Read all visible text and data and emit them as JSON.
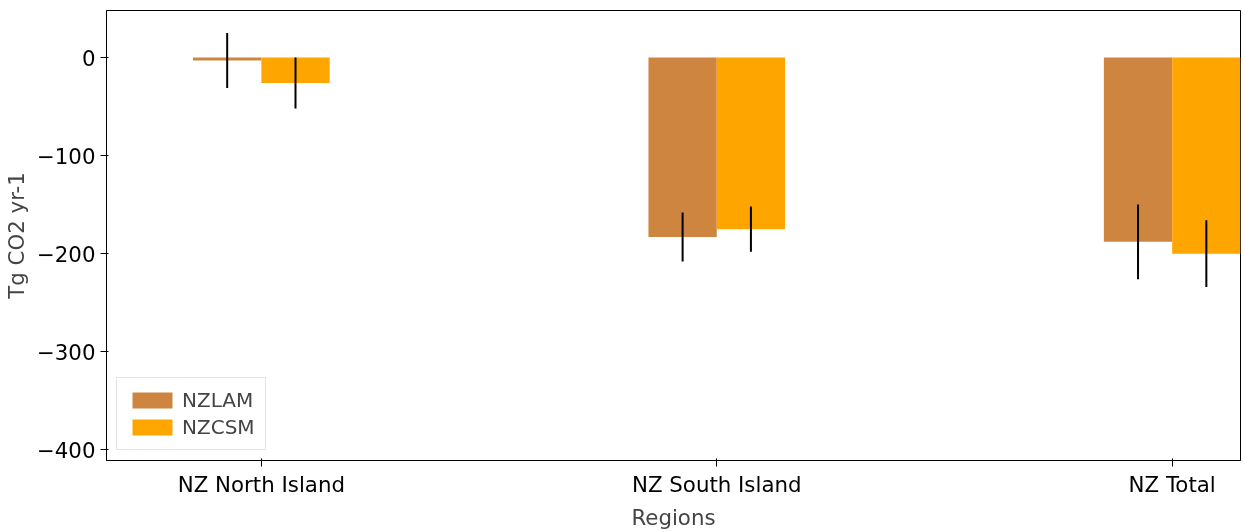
{
  "chart_data": {
    "type": "bar",
    "xlabel": "Regions",
    "ylabel": "Tg CO2 yr-1",
    "categories": [
      "NZ North Island",
      "NZ South Island",
      "NZ Total"
    ],
    "series": [
      {
        "name": "NZLAM",
        "color": "#cd853f",
        "values": [
          -3,
          -183,
          -188
        ],
        "errors": [
          28,
          25,
          38
        ]
      },
      {
        "name": "NZCSM",
        "color": "#ffa500",
        "values": [
          -26,
          -175,
          -200
        ],
        "errors": [
          26,
          23,
          34
        ]
      }
    ],
    "ylim": [
      -411,
      48
    ],
    "yticks": [
      {
        "value": -400,
        "label": "−400"
      },
      {
        "value": -300,
        "label": "−300"
      },
      {
        "value": -200,
        "label": "−200"
      },
      {
        "value": -100,
        "label": "−100"
      },
      0
    ],
    "grid": false,
    "legend": "bottom left"
  }
}
